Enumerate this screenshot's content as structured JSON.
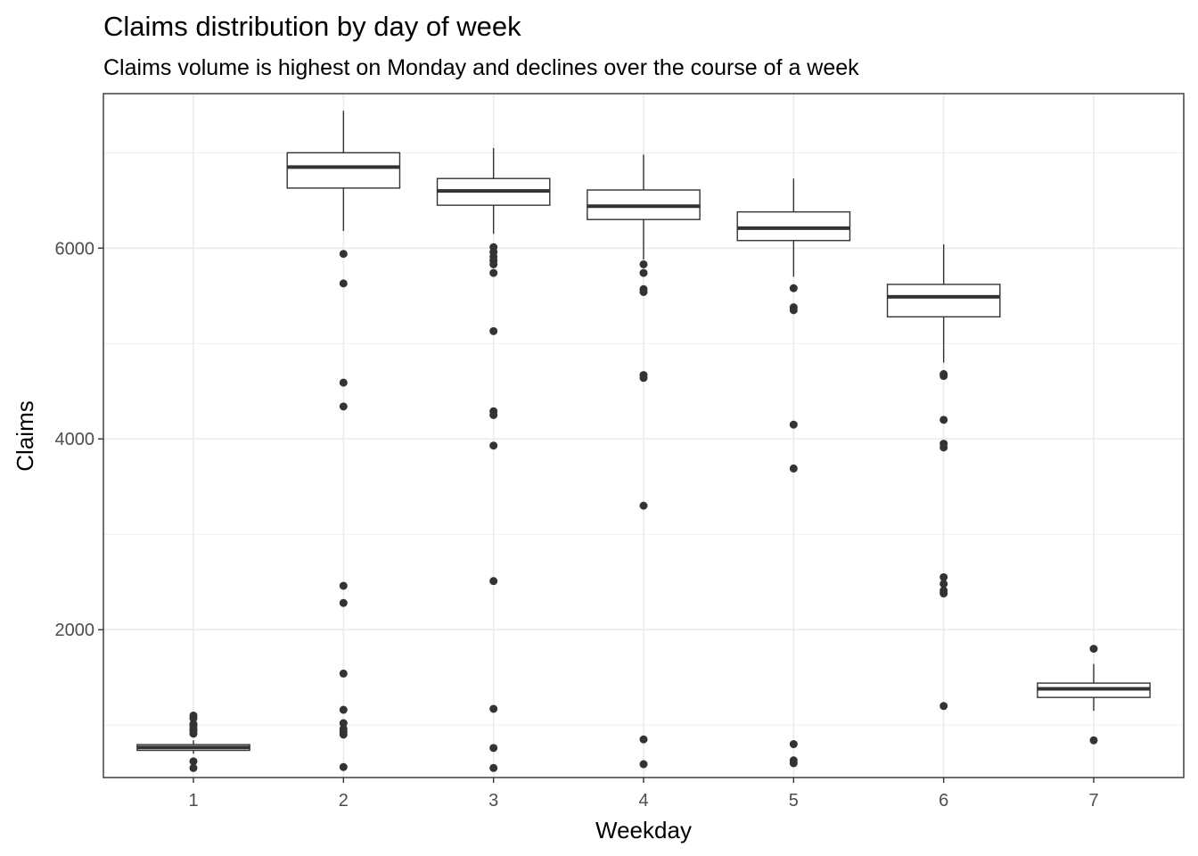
{
  "chart_data": {
    "type": "boxplot",
    "title": "Claims distribution by day of week",
    "subtitle": "Claims volume is highest on Monday and declines over the course of a week",
    "xlabel": "Weekday",
    "ylabel": "Claims",
    "categories": [
      "1",
      "2",
      "3",
      "4",
      "5",
      "6",
      "7"
    ],
    "ylim": [
      450,
      7620
    ],
    "yticks": [
      2000,
      4000,
      6000
    ],
    "y_tick_labels": [
      "2000",
      "4000",
      "6000"
    ],
    "grid": true,
    "boxes": [
      {
        "category": "1",
        "min": 700,
        "q1": 735,
        "median": 765,
        "q3": 795,
        "max": 840,
        "outliers": [
          1100,
          1070,
          1010,
          990,
          960,
          940,
          910,
          620,
          550
        ]
      },
      {
        "category": "2",
        "min": 6180,
        "q1": 6630,
        "median": 6850,
        "q3": 7000,
        "max": 7440,
        "outliers": [
          5940,
          5630,
          4590,
          4340,
          2460,
          2280,
          1540,
          1160,
          1020,
          960,
          930,
          900,
          560
        ]
      },
      {
        "category": "3",
        "min": 6150,
        "q1": 6450,
        "median": 6600,
        "q3": 6730,
        "max": 7050,
        "outliers": [
          6010,
          5960,
          5910,
          5870,
          5830,
          5740,
          5130,
          4290,
          4250,
          3930,
          2510,
          1170,
          760,
          550
        ]
      },
      {
        "category": "4",
        "min": 5880,
        "q1": 6300,
        "median": 6440,
        "q3": 6610,
        "max": 6980,
        "outliers": [
          5830,
          5740,
          5570,
          5540,
          4670,
          4640,
          3300,
          850,
          590
        ]
      },
      {
        "category": "5",
        "min": 5700,
        "q1": 6080,
        "median": 6210,
        "q3": 6380,
        "max": 6730,
        "outliers": [
          5580,
          5380,
          5350,
          4150,
          3690,
          800,
          630,
          600
        ]
      },
      {
        "category": "6",
        "min": 4800,
        "q1": 5280,
        "median": 5490,
        "q3": 5620,
        "max": 6040,
        "outliers": [
          4680,
          4660,
          4200,
          3950,
          3910,
          2550,
          2480,
          2410,
          2380,
          1200
        ]
      },
      {
        "category": "7",
        "min": 1150,
        "q1": 1290,
        "median": 1380,
        "q3": 1440,
        "max": 1640,
        "outliers": [
          1800,
          840
        ]
      }
    ]
  }
}
